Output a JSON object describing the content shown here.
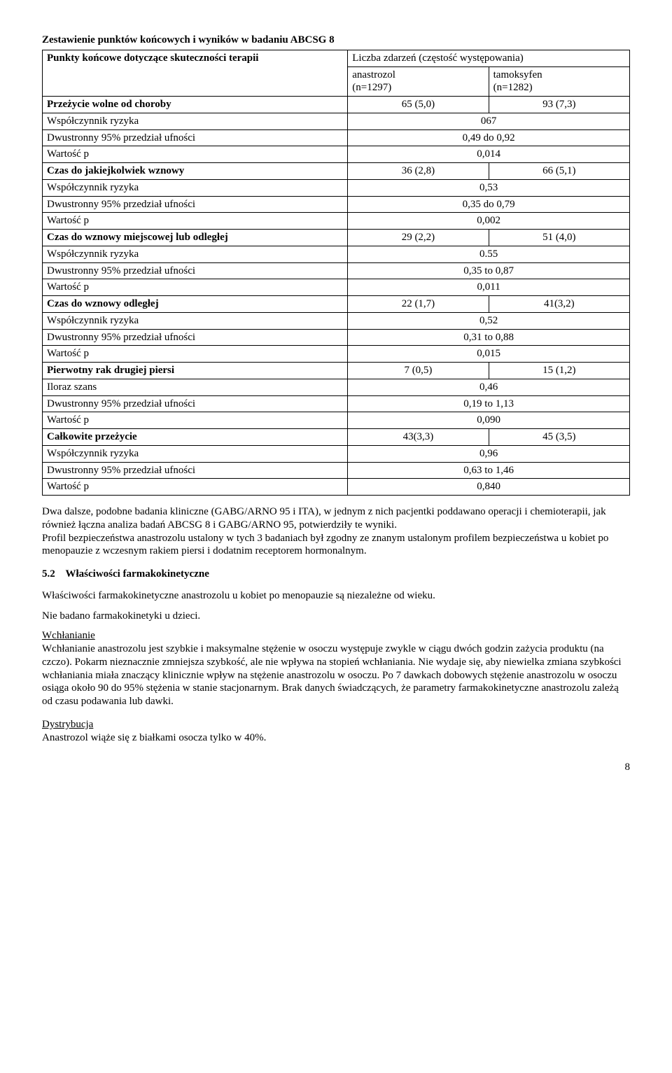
{
  "title": "Zestawienie punktów końcowych i wyników w badaniu ABCSG 8",
  "header": {
    "row1_left": "Punkty końcowe dotyczące skuteczności terapii",
    "row1_right": "Liczba zdarzeń (częstość występowania)",
    "sub_left": "anastrozol\n(n=1297)",
    "sub_right": "tamoksyfen\n(n=1282)"
  },
  "rows": [
    {
      "label": "Przeżycie wolne od choroby",
      "a": "65 (5,0)",
      "b": "93 (7,3)",
      "bold": true
    },
    {
      "label": "Współczynnik ryzyka",
      "merged": "067"
    },
    {
      "label": "Dwustronny 95% przedział ufności",
      "merged": "0,49 do 0,92"
    },
    {
      "label": "Wartość p",
      "merged": "0,014"
    },
    {
      "label": "Czas do jakiejkolwiek wznowy",
      "a": "36 (2,8)",
      "b": "66 (5,1)",
      "bold": true
    },
    {
      "label": "Współczynnik ryzyka",
      "merged": "0,53"
    },
    {
      "label": "Dwustronny 95% przedział ufności",
      "merged": "0,35 do 0,79"
    },
    {
      "label": "Wartość p",
      "merged": "0,002"
    },
    {
      "label": "Czas do wznowy miejscowej lub odległej",
      "a": "29 (2,2)",
      "b": "51 (4,0)",
      "bold": true
    },
    {
      "label": "Współczynnik ryzyka",
      "merged": "0.55"
    },
    {
      "label": "Dwustronny 95% przedział ufności",
      "merged": "0,35 to 0,87"
    },
    {
      "label": "Wartość p",
      "merged": "0,011"
    },
    {
      "label": "Czas do wznowy odległej",
      "a": "22 (1,7)",
      "b": "41(3,2)",
      "bold": true
    },
    {
      "label": "Współczynnik ryzyka",
      "merged": "0,52"
    },
    {
      "label": "Dwustronny 95% przedział ufności",
      "merged": "0,31 to 0,88"
    },
    {
      "label": "Wartość p",
      "merged": "0,015"
    },
    {
      "label": "Pierwotny rak drugiej piersi",
      "a": "7 (0,5)",
      "b": "15 (1,2)",
      "bold": true
    },
    {
      "label": "Iloraz szans",
      "merged": "0,46"
    },
    {
      "label": "Dwustronny 95% przedział ufności",
      "merged": "0,19 to 1,13"
    },
    {
      "label": "Wartość p",
      "merged": "0,090"
    },
    {
      "label": "Całkowite przeżycie",
      "a": "43(3,3)",
      "b": "45 (3,5)",
      "bold": true
    },
    {
      "label": "Współczynnik ryzyka",
      "merged": "0,96"
    },
    {
      "label": "Dwustronny 95% przedział ufności",
      "merged": "0,63 to 1,46"
    },
    {
      "label": "Wartość p",
      "merged": "0,840"
    }
  ],
  "para1": "Dwa dalsze, podobne badania kliniczne (GABG/ARNO 95 i ITA), w jednym z nich pacjentki poddawano operacji i chemioterapii, jak również łączna analiza badań ABCSG 8 i GABG/ARNO 95, potwierdziły te wyniki.\nProfil bezpieczeństwa anastrozolu ustalony w tych 3 badaniach był zgodny ze znanym  ustalonym profilem bezpieczeństwa u kobiet po menopauzie z wczesnym rakiem piersi i dodatnim receptorem hormonalnym.",
  "section52_num": "5.2",
  "section52_title": "Właściwości farmakokinetyczne",
  "para2": "Właściwości farmakokinetyczne anastrozolu u kobiet po menopauzie są niezależne od wieku.",
  "para3": "Nie badano farmakokinetyki u dzieci.",
  "abs_head": "Wchłanianie",
  "abs_body": "Wchłanianie anastrozolu jest szybkie i maksymalne stężenie w osoczu występuje zwykle w ciągu dwóch godzin zażycia produktu (na czczo). Pokarm nieznacznie zmniejsza szybkość, ale nie wpływa na stopień wchłaniania. Nie wydaje się, aby niewielka zmiana szybkości wchłaniania  miała znaczący klinicznie wpływ na stężenie anastrozolu w osoczu. Po 7 dawkach dobowych stężenie anastrozolu w osoczu osiąga około 90 do 95% stężenia w stanie stacjonarnym. Brak danych świadczących, że parametry farmakokinetyczne anastrozolu zależą od czasu podawania lub dawki.",
  "dist_head": "Dystrybucja",
  "dist_body": "Anastrozol wiąże się z białkami osocza tylko w 40%.",
  "page_num": "8",
  "colors": {
    "text": "#000000",
    "bg": "#ffffff",
    "border": "#000000"
  },
  "col_widths": {
    "label": "52%",
    "a": "24%",
    "b": "24%"
  }
}
